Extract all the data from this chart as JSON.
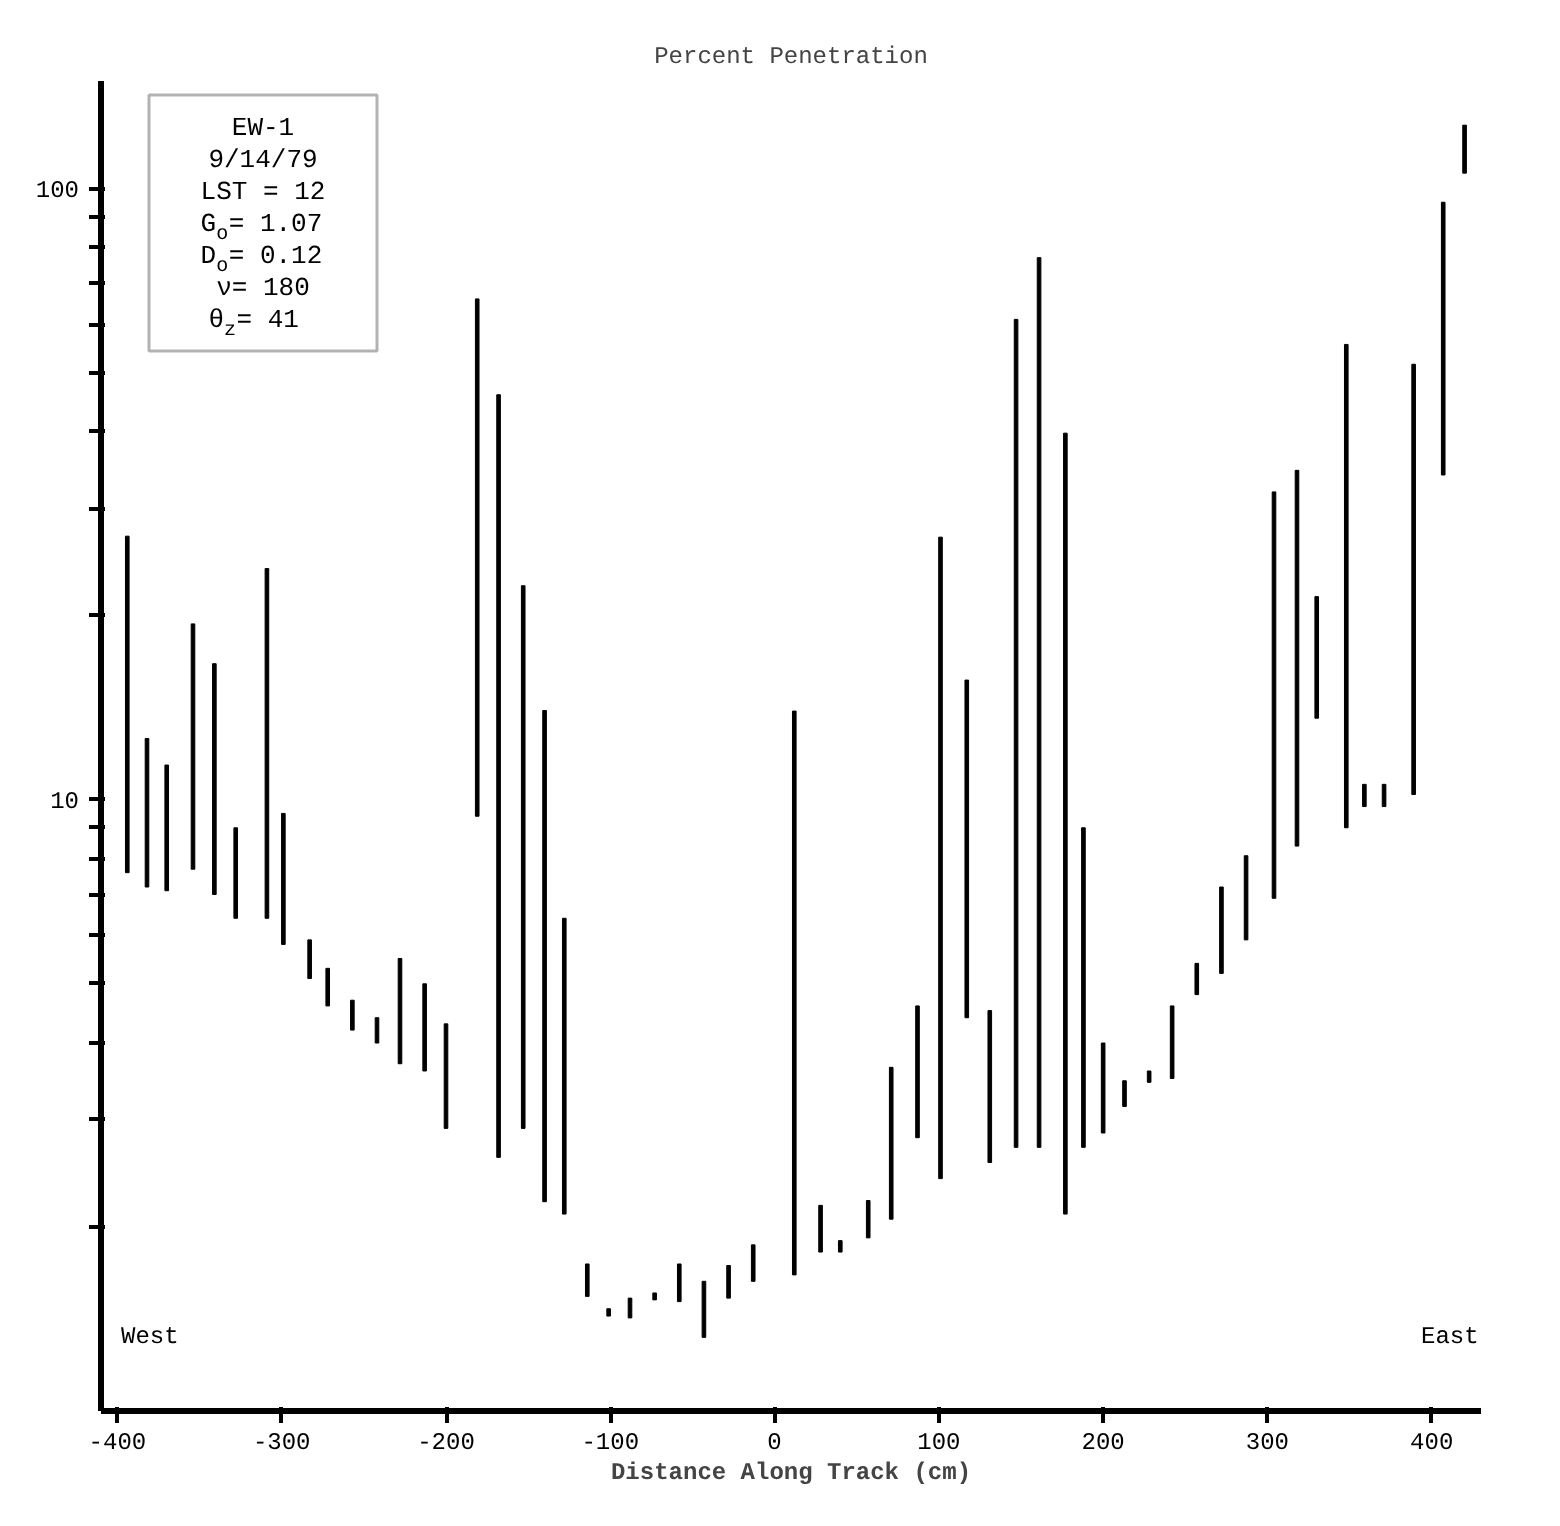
{
  "chart_data": {
    "type": "bar",
    "ylabel": "Percent Penetration",
    "xlabel": "Distance Along Track (cm)",
    "annotations": [
      "EW-1",
      "9/14/79",
      "LST = 12",
      "G$_{o}$= 1.07",
      "D$_{o}$= 0.12",
      "ν= 180",
      "θ$_{z}$=  41",
      "West",
      "East"
    ],
    "x": [
      -394,
      -382,
      -370,
      -354,
      -341,
      -328,
      -309,
      -299,
      -283,
      -272,
      -257,
      -242,
      -228,
      -213,
      -200,
      -181,
      -168,
      -153,
      -140,
      -128,
      -114,
      -101,
      -88,
      -73,
      -58,
      -43,
      -28,
      -13,
      12,
      28,
      40,
      57,
      71,
      87,
      101,
      117,
      131,
      147,
      161,
      177,
      188,
      200,
      213,
      228,
      242,
      257,
      272,
      287,
      304,
      318,
      330,
      348,
      359,
      371,
      389,
      407,
      420
    ],
    "base": [
      7.6,
      7.2,
      7.1,
      7.7,
      7.0,
      6.4,
      6.4,
      5.8,
      5.1,
      4.6,
      4.2,
      4.0,
      3.7,
      3.6,
      2.9,
      9.4,
      2.6,
      2.9,
      2.2,
      2.1,
      1.54,
      1.43,
      1.42,
      1.52,
      1.51,
      1.32,
      1.53,
      1.63,
      1.67,
      1.82,
      1.82,
      1.92,
      2.06,
      2.8,
      2.4,
      4.4,
      2.55,
      2.7,
      2.7,
      2.1,
      2.7,
      2.85,
      3.15,
      3.45,
      3.5,
      4.8,
      5.2,
      5.9,
      6.9,
      8.4,
      13.6,
      9.0,
      9.75,
      9.75,
      10.2,
      34,
      106
    ],
    "values": [
      19.4,
      5.4,
      4.3,
      11.7,
      9.7,
      2.6,
      17.5,
      3.7,
      0.8,
      0.7,
      0.5,
      0.4,
      1.8,
      1.4,
      1.4,
      56.6,
      43.4,
      19.5,
      11.8,
      4.3,
      0.2,
      0.04,
      0.11,
      0.04,
      0.23,
      0.31,
      0.2,
      0.24,
      12.3,
      0.35,
      0.08,
      0.29,
      1.59,
      1.8,
      24.5,
      11.3,
      1.97,
      58.4,
      74.4,
      37.7,
      6.3,
      1.15,
      0.32,
      0.15,
      1.1,
      0.6,
      2.0,
      2.2,
      25.0,
      26.2,
      7.9,
      46.6,
      0.85,
      0.85,
      41.4,
      61,
      21
    ],
    "color": "#000000",
    "log": "y",
    "xlim": [
      -410,
      430
    ],
    "ylim": [
      1,
      150
    ],
    "xticks": [
      -400,
      -300,
      -200,
      -100,
      0,
      100,
      200,
      300,
      400
    ],
    "yticks": [
      {
        "value": 2,
        "label": null
      },
      {
        "value": 3,
        "label": null
      },
      {
        "value": 4,
        "label": null
      },
      {
        "value": 5,
        "label": null
      },
      {
        "value": 6,
        "label": null
      },
      {
        "value": 7,
        "label": null
      },
      {
        "value": 8,
        "label": null
      },
      {
        "value": 9,
        "label": null
      },
      10,
      {
        "value": 20,
        "label": null
      },
      {
        "value": 30,
        "label": null
      },
      {
        "value": 40,
        "label": null
      },
      {
        "value": 50,
        "label": null
      },
      {
        "value": 60,
        "label": null
      },
      {
        "value": 70,
        "label": null
      },
      {
        "value": 80,
        "label": null
      },
      {
        "value": 90,
        "label": null
      },
      100
    ],
    "grid": false
  }
}
